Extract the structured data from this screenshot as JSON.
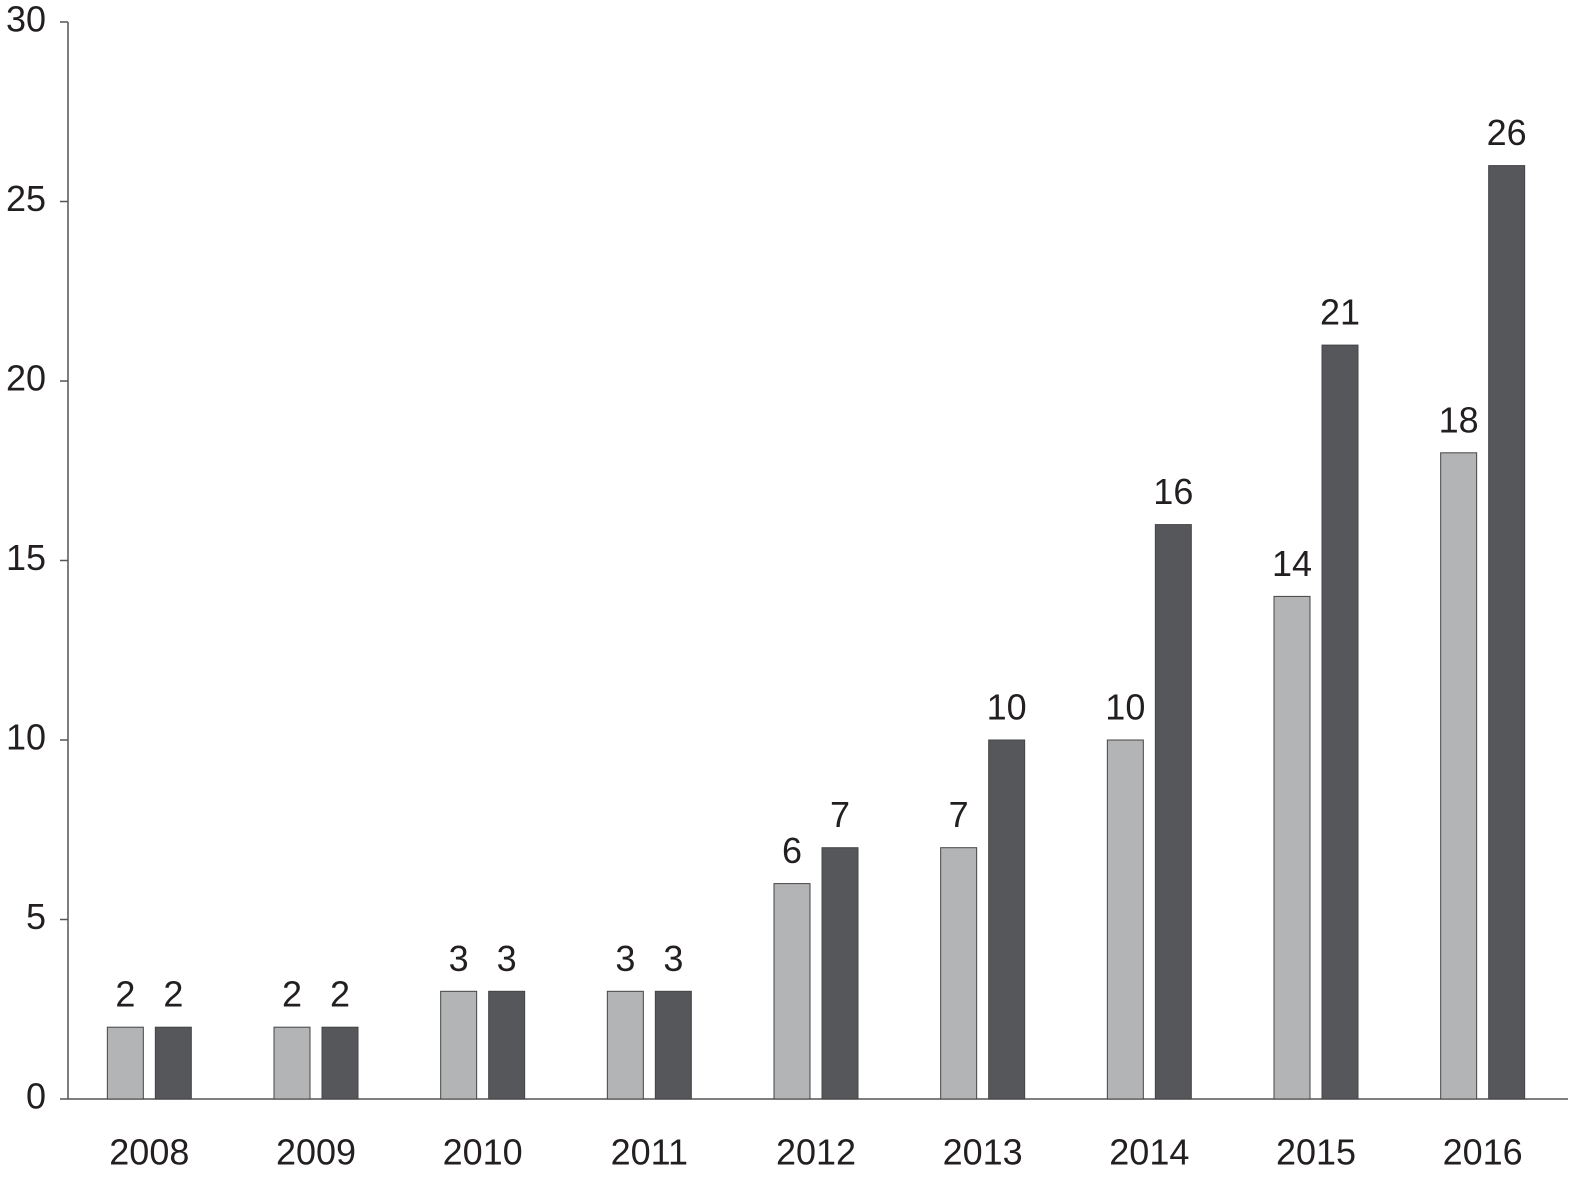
{
  "chart_data": {
    "type": "bar",
    "categories": [
      "2008",
      "2009",
      "2010",
      "2011",
      "2012",
      "2013",
      "2014",
      "2015",
      "2016"
    ],
    "series": [
      {
        "color": "#b3b4b6",
        "values": [
          2,
          2,
          3,
          3,
          6,
          7,
          10,
          14,
          18
        ]
      },
      {
        "color": "#55575a",
        "values": [
          2,
          2,
          3,
          3,
          7,
          10,
          16,
          21,
          26
        ]
      }
    ],
    "ylim": [
      0,
      30
    ],
    "yticks": [
      0,
      5,
      10,
      15,
      20,
      25,
      30
    ],
    "grid": false
  }
}
